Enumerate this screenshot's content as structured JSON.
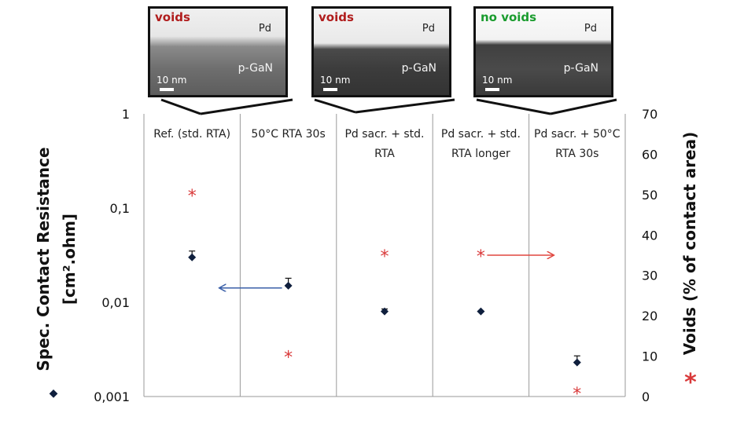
{
  "insets": [
    {
      "label": "voids",
      "label_color": "#b01c1c",
      "metal": "Pd",
      "substrate": "p-GaN",
      "scale": "10 nm"
    },
    {
      "label": "voids",
      "label_color": "#b01c1c",
      "metal": "Pd",
      "substrate": "p-GaN",
      "scale": "10 nm"
    },
    {
      "label": "no voids",
      "label_color": "#1a9c2e",
      "metal": "Pd",
      "substrate": "p-GaN",
      "scale": "10 nm"
    }
  ],
  "chart_data": {
    "type": "scatter",
    "categories": [
      [
        "Ref. (std. RTA)"
      ],
      [
        "50°C RTA 30s"
      ],
      [
        "Pd sacr. + std.",
        "RTA"
      ],
      [
        "Pd sacr. + std.",
        "RTA longer"
      ],
      [
        "Pd sacr. + 50°C",
        "RTA 30s"
      ]
    ],
    "y_left": {
      "label_lines": [
        "Spec. Contact Resistance",
        "[cm².ohm]"
      ],
      "scale": "log",
      "ylim": [
        0.001,
        1
      ],
      "ticks": [
        {
          "v": 1,
          "t": "1"
        },
        {
          "v": 0.1,
          "t": "0,1"
        },
        {
          "v": 0.01,
          "t": "0,01"
        },
        {
          "v": 0.001,
          "t": "0,001"
        }
      ],
      "marker": "◆",
      "color": "#0f1f3d"
    },
    "y_right": {
      "label": "Voids (% of contact area)",
      "marker": "*",
      "ylim": [
        0,
        70
      ],
      "ticks": [
        0,
        10,
        20,
        30,
        40,
        50,
        60,
        70
      ],
      "color": "#d9393a"
    },
    "series": [
      {
        "axis": "left",
        "marker": "diamond",
        "color": "#0f1f3d",
        "values": [
          0.03,
          0.015,
          0.008,
          0.008,
          0.0023
        ],
        "err_upper": [
          0.035,
          0.018,
          0.0085,
          null,
          0.0027
        ]
      },
      {
        "axis": "right",
        "marker": "asterisk",
        "color": "#d9393a",
        "values": [
          50,
          10,
          35,
          35,
          1
        ]
      }
    ],
    "grid": "vertical separators only",
    "annotations": [
      {
        "type": "arrow",
        "direction": "left",
        "color": "#3a5fa8",
        "category": 1,
        "value_left": 0.0142
      },
      {
        "type": "arrow",
        "direction": "right",
        "color": "#e0463f",
        "category": 3,
        "value_right": 35
      }
    ]
  }
}
